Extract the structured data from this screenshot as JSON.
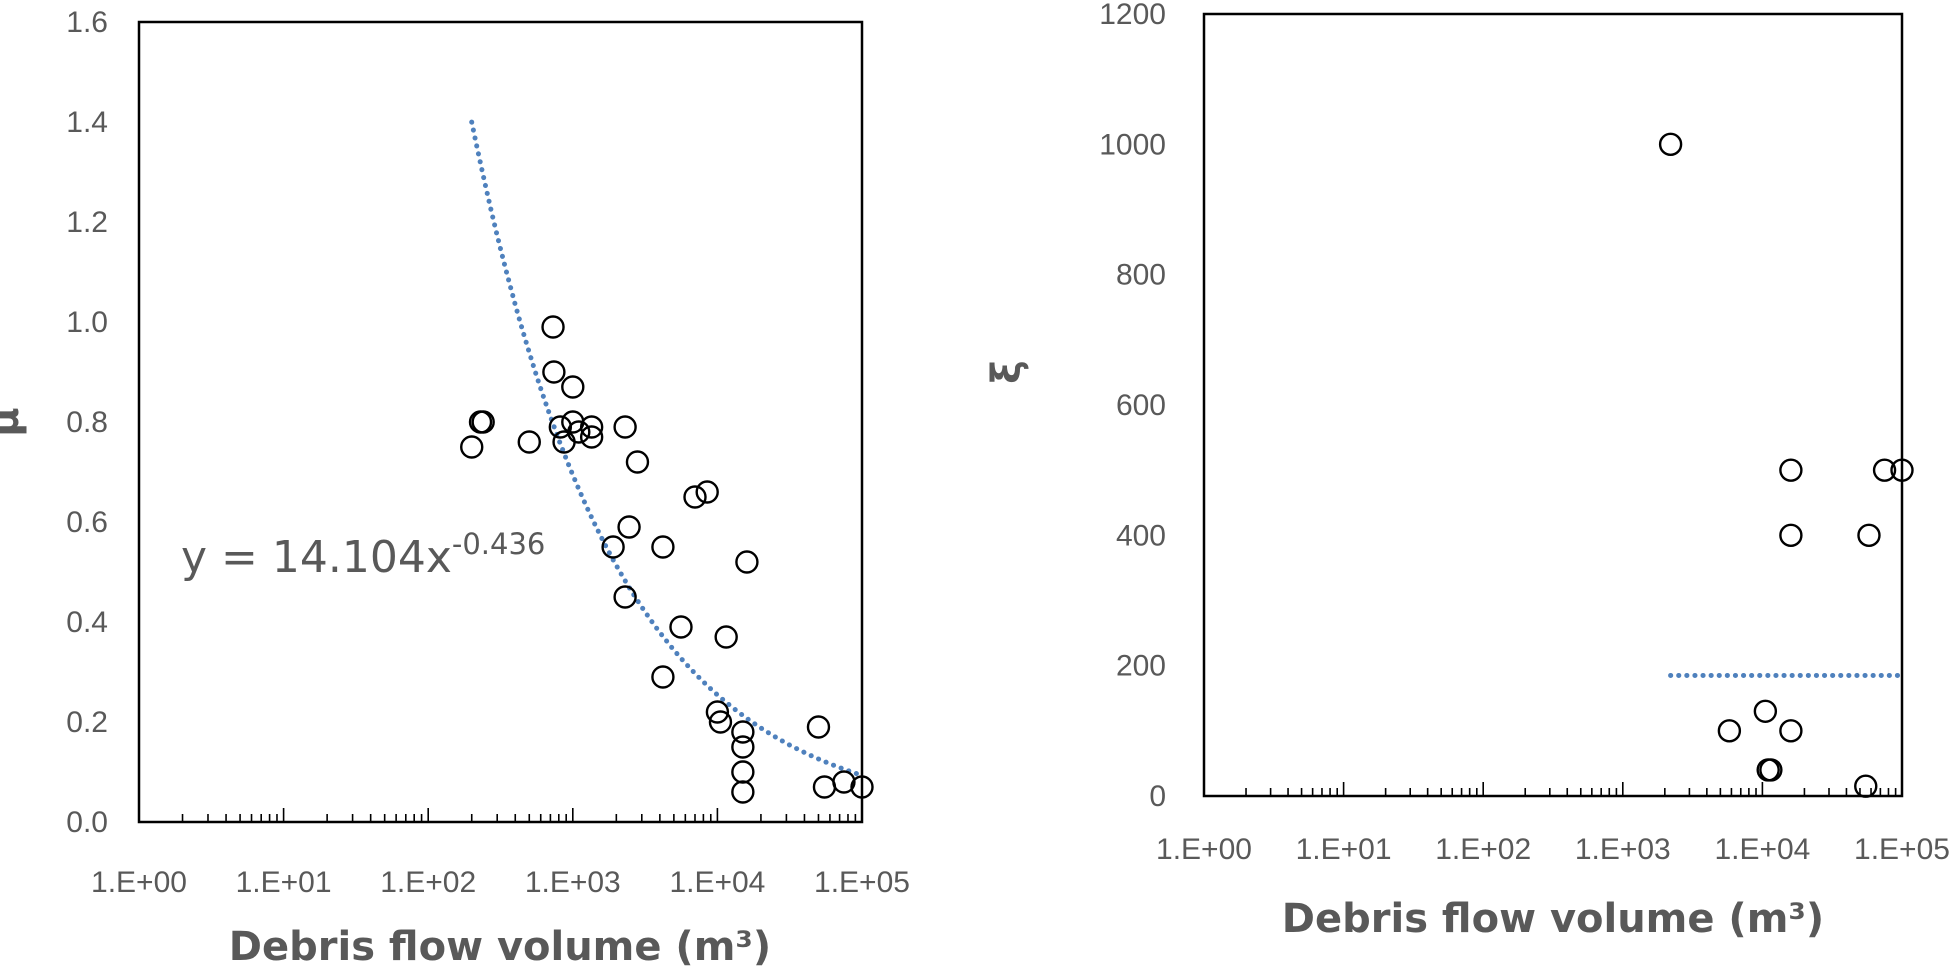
{
  "chart_data": [
    {
      "type": "scatter",
      "xlabel": "Debris flow volume (m³)",
      "ylabel": "μ",
      "x_scale": "log",
      "xlim": [
        1,
        100000
      ],
      "ylim": [
        0,
        1.6
      ],
      "x_ticks": [
        "1.E+00",
        "1.E+01",
        "1.E+02",
        "1.E+03",
        "1.E+04",
        "1.E+05"
      ],
      "y_ticks": [
        "0.0",
        "0.2",
        "0.4",
        "0.6",
        "0.8",
        "1.0",
        "1.2",
        "1.4",
        "1.6"
      ],
      "grid": false,
      "legend": "none",
      "colors": {
        "marker": "#000000",
        "trendline": "#4f81bd",
        "text": "#595959"
      },
      "trendline": {
        "type": "power",
        "equation": "y = 14.104x",
        "exponent": "-0.436",
        "a": 14.104,
        "b": -0.436,
        "x_range": [
          200,
          100000
        ]
      },
      "points": [
        {
          "x": 200,
          "y": 0.75
        },
        {
          "x": 230,
          "y": 0.8
        },
        {
          "x": 240,
          "y": 0.8
        },
        {
          "x": 500,
          "y": 0.76
        },
        {
          "x": 730,
          "y": 0.99
        },
        {
          "x": 740,
          "y": 0.9
        },
        {
          "x": 820,
          "y": 0.79
        },
        {
          "x": 870,
          "y": 0.76
        },
        {
          "x": 1000,
          "y": 0.87
        },
        {
          "x": 1000,
          "y": 0.8
        },
        {
          "x": 1100,
          "y": 0.78
        },
        {
          "x": 1350,
          "y": 0.79
        },
        {
          "x": 1350,
          "y": 0.77
        },
        {
          "x": 1900,
          "y": 0.55
        },
        {
          "x": 2300,
          "y": 0.79
        },
        {
          "x": 2300,
          "y": 0.45
        },
        {
          "x": 2450,
          "y": 0.59
        },
        {
          "x": 2800,
          "y": 0.72
        },
        {
          "x": 4200,
          "y": 0.55
        },
        {
          "x": 4200,
          "y": 0.29
        },
        {
          "x": 5600,
          "y": 0.39
        },
        {
          "x": 7000,
          "y": 0.65
        },
        {
          "x": 8500,
          "y": 0.66
        },
        {
          "x": 10000,
          "y": 0.22
        },
        {
          "x": 10500,
          "y": 0.2
        },
        {
          "x": 11500,
          "y": 0.37
        },
        {
          "x": 15000,
          "y": 0.18
        },
        {
          "x": 15000,
          "y": 0.15
        },
        {
          "x": 15000,
          "y": 0.1
        },
        {
          "x": 15000,
          "y": 0.06
        },
        {
          "x": 16000,
          "y": 0.52
        },
        {
          "x": 50000,
          "y": 0.19
        },
        {
          "x": 55000,
          "y": 0.07
        },
        {
          "x": 75000,
          "y": 0.08
        },
        {
          "x": 100000,
          "y": 0.07
        }
      ]
    },
    {
      "type": "scatter",
      "xlabel": "Debris flow  volume (m³)",
      "ylabel": "ξ",
      "x_scale": "log",
      "xlim": [
        1,
        100000
      ],
      "ylim": [
        0,
        1200
      ],
      "x_ticks": [
        "1.E+00",
        "1.E+01",
        "1.E+02",
        "1.E+03",
        "1.E+04",
        "1.E+05"
      ],
      "y_ticks": [
        "0",
        "200",
        "400",
        "600",
        "800",
        "1000",
        "1200"
      ],
      "grid": false,
      "legend": "none",
      "colors": {
        "marker": "#000000",
        "trendline": "#4f81bd",
        "text": "#595959"
      },
      "trendline": {
        "type": "constant",
        "y": 185,
        "x_range": [
          2200,
          100000
        ]
      },
      "points": [
        {
          "x": 2200,
          "y": 1000
        },
        {
          "x": 5800,
          "y": 100
        },
        {
          "x": 10500,
          "y": 130
        },
        {
          "x": 11000,
          "y": 40
        },
        {
          "x": 11500,
          "y": 40
        },
        {
          "x": 16000,
          "y": 500
        },
        {
          "x": 16000,
          "y": 400
        },
        {
          "x": 16000,
          "y": 100
        },
        {
          "x": 55000,
          "y": 15
        },
        {
          "x": 58000,
          "y": 400
        },
        {
          "x": 75000,
          "y": 500
        },
        {
          "x": 100000,
          "y": 500
        }
      ]
    }
  ]
}
